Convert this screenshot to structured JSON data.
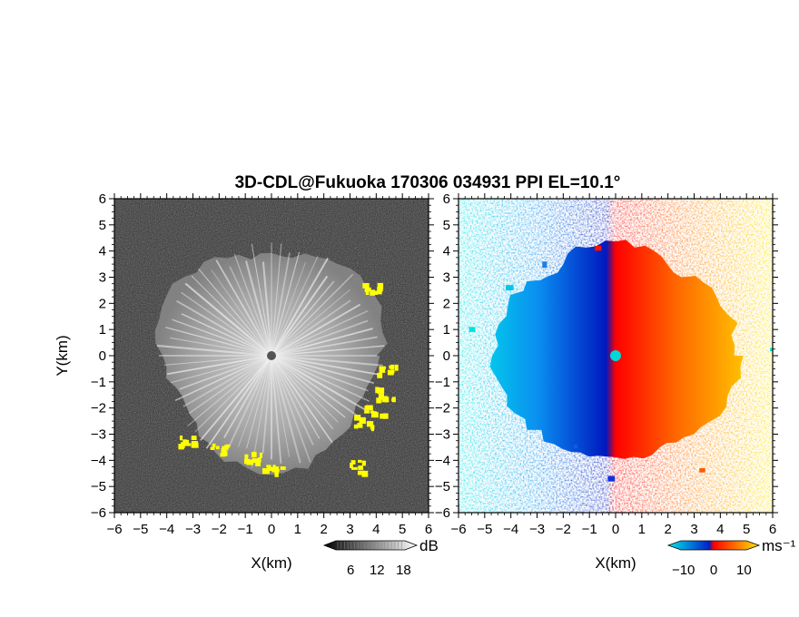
{
  "chart_data": {
    "type": "heatmap",
    "title": "3D-CDL@Fukuoka 170306 034931 PPI EL=10.1°",
    "panels": [
      {
        "name": "snr",
        "xlabel": "X(km)",
        "ylabel": "Y(km)",
        "xlim": [
          -6,
          6
        ],
        "ylim": [
          -6,
          6
        ],
        "xticks": [
          "−6",
          "−5",
          "−4",
          "−3",
          "−2",
          "−1",
          "0",
          "1",
          "2",
          "3",
          "4",
          "5",
          "6"
        ],
        "yticks": [
          "6",
          "5",
          "4",
          "3",
          "2",
          "1",
          "0",
          "−1",
          "−2",
          "−3",
          "−4",
          "−5",
          "−6"
        ],
        "colorbar": {
          "unit": "dB",
          "ticks": [
            "6",
            "12",
            "18"
          ],
          "range": [
            0,
            21
          ]
        },
        "colors": {
          "background": "#2a2a2a",
          "echo": "#d8d8d8",
          "highlight": "#ffff00",
          "center": "#555555"
        },
        "highlights": [
          {
            "x": 3.8,
            "y": 2.7
          },
          {
            "x": 4.4,
            "y": -0.5
          },
          {
            "x": 4.3,
            "y": -1.4
          },
          {
            "x": 3.9,
            "y": -2.1
          },
          {
            "x": 3.5,
            "y": -2.5
          },
          {
            "x": -3.3,
            "y": -3.2
          },
          {
            "x": -2.0,
            "y": -3.5
          },
          {
            "x": -0.8,
            "y": -3.8
          },
          {
            "x": 0.0,
            "y": -4.2
          },
          {
            "x": 3.2,
            "y": -4.2
          }
        ]
      },
      {
        "name": "velocity",
        "xlabel": "X(km)",
        "xlim": [
          -6,
          6
        ],
        "ylim": [
          -6,
          6
        ],
        "xticks": [
          "−6",
          "−5",
          "−4",
          "−3",
          "−2",
          "−1",
          "0",
          "1",
          "2",
          "3",
          "4",
          "5",
          "6"
        ],
        "yticks": [
          "6",
          "5",
          "4",
          "3",
          "2",
          "1",
          "0",
          "−1",
          "−2",
          "−3",
          "−4",
          "−5",
          "−6"
        ],
        "colorbar": {
          "unit": "ms⁻¹",
          "ticks": [
            "−10",
            "0",
            "10"
          ],
          "range": [
            -15,
            15
          ]
        },
        "colors": {
          "negative_far": "#00e0e0",
          "negative_near": "#0030d0",
          "positive_near": "#ff1000",
          "positive_far": "#ffe000",
          "center": "#00d8d8"
        }
      }
    ]
  }
}
